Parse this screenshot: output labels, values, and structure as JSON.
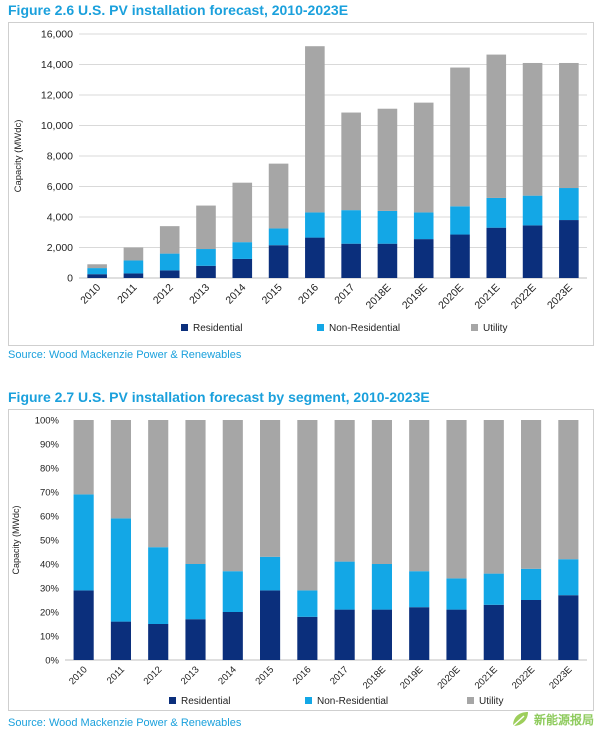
{
  "figure1": {
    "title": "Figure 2.6 U.S. PV installation forecast, 2010-2023E",
    "source": "Source: Wood Mackenzie Power & Renewables"
  },
  "figure2": {
    "title": "Figure 2.7 U.S. PV installation forecast by segment, 2010-2023E",
    "source": "Source: Wood Mackenzie Power & Renewables"
  },
  "colors": {
    "residential": "#0b2f7c",
    "non_residential": "#13a7e6",
    "utility": "#a6a6a6",
    "title": "#1aa0dc"
  },
  "watermark": {
    "text": "新能源报局",
    "icon": "leaf-logo-icon"
  },
  "chart_data": [
    {
      "type": "bar",
      "stacked": true,
      "categories": [
        "2010",
        "2011",
        "2012",
        "2013",
        "2014",
        "2015",
        "2016",
        "2017",
        "2018E",
        "2019E",
        "2020E",
        "2021E",
        "2022E",
        "2023E"
      ],
      "series": [
        {
          "name": "Residential",
          "values": [
            250,
            300,
            500,
            800,
            1250,
            2150,
            2650,
            2250,
            2250,
            2550,
            2850,
            3300,
            3450,
            3800
          ]
        },
        {
          "name": "Non-Residential",
          "values": [
            400,
            850,
            1100,
            1100,
            1100,
            1100,
            1650,
            2200,
            2150,
            1750,
            1850,
            1950,
            1950,
            2100
          ]
        },
        {
          "name": "Utility",
          "values": [
            250,
            850,
            1800,
            2850,
            3900,
            4250,
            10900,
            6400,
            6700,
            7200,
            9100,
            9400,
            8700,
            8200
          ]
        }
      ],
      "xlabel": "",
      "ylabel": "Capacity (MWdc)",
      "ylim": [
        0,
        16000
      ],
      "yticks": [
        "0",
        "2,000",
        "4,000",
        "6,000",
        "8,000",
        "10,000",
        "12,000",
        "14,000",
        "16,000"
      ],
      "legend_position": "bottom",
      "grid": true
    },
    {
      "type": "bar",
      "stacked": true,
      "percent": true,
      "categories": [
        "2010",
        "2011",
        "2012",
        "2013",
        "2014",
        "2015",
        "2016",
        "2017",
        "2018E",
        "2019E",
        "2020E",
        "2021E",
        "2022E",
        "2023E"
      ],
      "series": [
        {
          "name": "Residential",
          "values": [
            29,
            16,
            15,
            17,
            20,
            29,
            18,
            21,
            21,
            22,
            21,
            23,
            25,
            27
          ]
        },
        {
          "name": "Non-Residential",
          "values": [
            40,
            43,
            32,
            23,
            17,
            14,
            11,
            20,
            19,
            15,
            13,
            13,
            13,
            15
          ]
        },
        {
          "name": "Utility",
          "values": [
            31,
            41,
            53,
            60,
            63,
            57,
            71,
            59,
            60,
            63,
            66,
            64,
            62,
            58
          ]
        }
      ],
      "xlabel": "",
      "ylabel": "Capacity (MWdc)",
      "ylim": [
        0,
        100
      ],
      "yticks": [
        "0%",
        "10%",
        "20%",
        "30%",
        "40%",
        "50%",
        "60%",
        "70%",
        "80%",
        "90%",
        "100%"
      ],
      "legend_position": "bottom",
      "grid": false
    }
  ]
}
